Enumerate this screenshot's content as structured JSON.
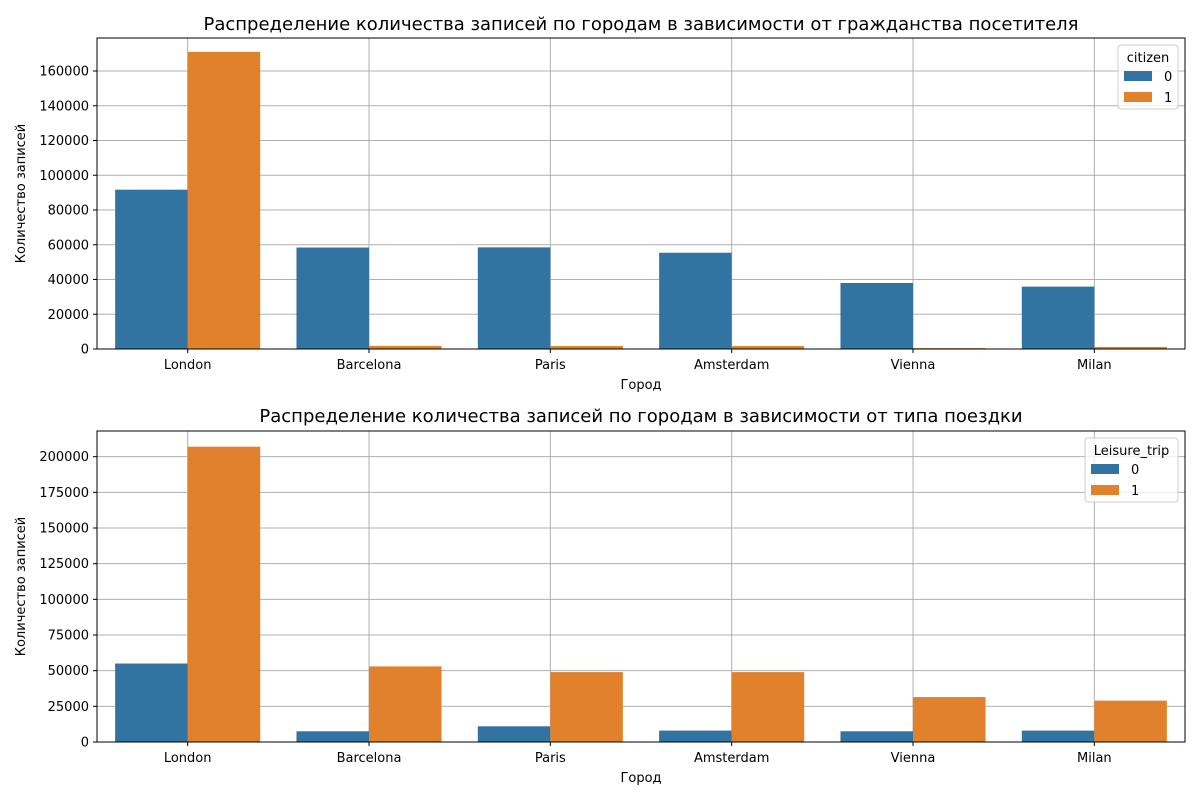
{
  "chart_data": [
    {
      "type": "bar",
      "title": "Распределение количества записей по городам в зависимости от гражданства посетителя",
      "xlabel": "Город",
      "ylabel": "Количество записей",
      "categories": [
        "London",
        "Barcelona",
        "Paris",
        "Amsterdam",
        "Vienna",
        "Milan"
      ],
      "legend_title": "citizen",
      "legend_position": "top-right",
      "grid": true,
      "ylim": [
        0,
        179000
      ],
      "yticks": [
        0,
        20000,
        40000,
        60000,
        80000,
        100000,
        120000,
        140000,
        160000
      ],
      "series": [
        {
          "name": "0",
          "color": "#3274a1",
          "values": [
            91700,
            58400,
            58500,
            55400,
            38000,
            35900
          ]
        },
        {
          "name": "1",
          "color": "#e1812c",
          "values": [
            171000,
            1800,
            1700,
            1700,
            500,
            1200
          ]
        }
      ]
    },
    {
      "type": "bar",
      "title": "Распределение количества записей по городам в зависимости от типа поездки",
      "xlabel": "Город",
      "ylabel": "Количество записей",
      "categories": [
        "London",
        "Barcelona",
        "Paris",
        "Amsterdam",
        "Vienna",
        "Milan"
      ],
      "legend_title": "Leisure_trip",
      "legend_position": "top-right",
      "grid": true,
      "ylim": [
        0,
        218000
      ],
      "yticks": [
        0,
        25000,
        50000,
        75000,
        100000,
        125000,
        150000,
        175000,
        200000
      ],
      "series": [
        {
          "name": "0",
          "color": "#3274a1",
          "values": [
            55000,
            7500,
            11000,
            8000,
            7500,
            8000
          ]
        },
        {
          "name": "1",
          "color": "#e1812c",
          "values": [
            207000,
            53000,
            49000,
            49000,
            31500,
            29000
          ]
        }
      ]
    }
  ]
}
